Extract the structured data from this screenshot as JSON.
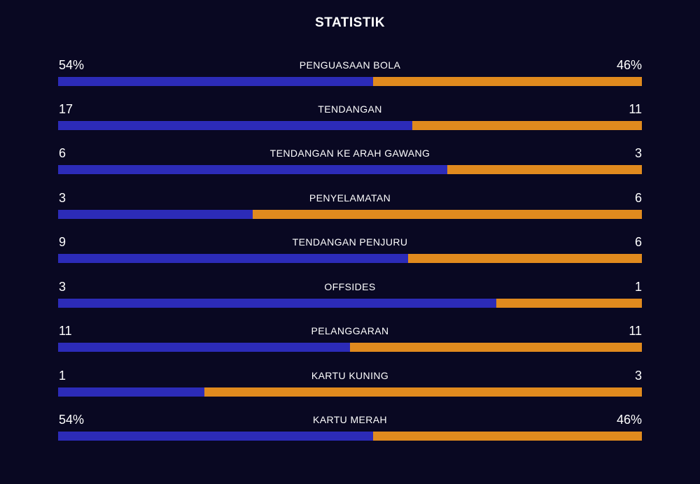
{
  "header": {
    "title": "STATISTIK"
  },
  "colors": {
    "background": "#090822",
    "home_bar": "#2c2bb8",
    "away_bar": "#e08a1e",
    "text": "#ffffff"
  },
  "stats": [
    {
      "label": "PENGUASAAN BOLA",
      "home": "54%",
      "away": "46%",
      "home_share": 0.54
    },
    {
      "label": "TENDANGAN",
      "home": "17",
      "away": "11",
      "home_share": 0.607
    },
    {
      "label": "TENDANGAN KE ARAH GAWANG",
      "home": "6",
      "away": "3",
      "home_share": 0.667
    },
    {
      "label": "PENYELAMATAN",
      "home": "3",
      "away": "6",
      "home_share": 0.333
    },
    {
      "label": "TENDANGAN PENJURU",
      "home": "9",
      "away": "6",
      "home_share": 0.6
    },
    {
      "label": "OFFSIDES",
      "home": "3",
      "away": "1",
      "home_share": 0.75
    },
    {
      "label": "PELANGGARAN",
      "home": "11",
      "away": "11",
      "home_share": 0.5
    },
    {
      "label": "KARTU KUNING",
      "home": "1",
      "away": "3",
      "home_share": 0.25
    },
    {
      "label": "KARTU MERAH",
      "home": "54%",
      "away": "46%",
      "home_share": 0.54
    }
  ]
}
